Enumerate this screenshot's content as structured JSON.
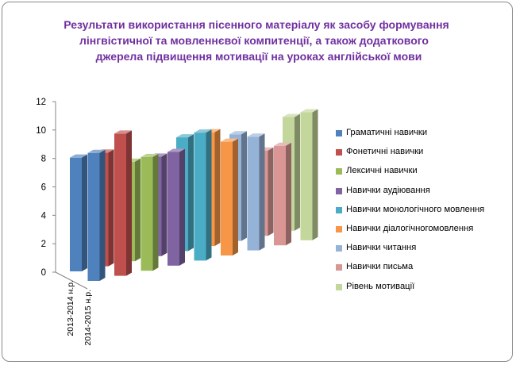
{
  "chart_data": {
    "type": "bar",
    "title_lines": [
      "Результати використання пісенного матеріалу  як засобу формування",
      "лінгвістичної та мовленнєвої компитенції, а також додаткового",
      "джерела підвищення мотивації на уроках англійської мови"
    ],
    "categories": [
      "2013-2014 н.р.",
      "2014-2015 н.р."
    ],
    "ylim": [
      0,
      12
    ],
    "yticks": [
      "0",
      "2",
      "4",
      "6",
      "8",
      "10",
      "12"
    ],
    "grid": false,
    "legend_position": "right",
    "series": [
      {
        "name": "Граматичні навички",
        "color": "#4f81bd",
        "values": [
          8,
          9
        ]
      },
      {
        "name": "Фонетичні навички",
        "color": "#c0504d",
        "values": [
          8,
          10
        ]
      },
      {
        "name": "Лексичні навички",
        "color": "#9bbb59",
        "values": [
          7,
          8
        ]
      },
      {
        "name": "Навички аудіювання",
        "color": "#8064a2",
        "values": [
          7,
          8
        ]
      },
      {
        "name": "Навички монологічного мовлення",
        "color": "#4bacc6",
        "values": [
          8,
          9
        ]
      },
      {
        "name": "Навички діалогічногомовлення",
        "color": "#f79646",
        "values": [
          8,
          8
        ]
      },
      {
        "name": "Навички читання",
        "color": "#95b3d7",
        "values": [
          7.5,
          8
        ]
      },
      {
        "name": "Навички письма",
        "color": "#d99694",
        "values": [
          6,
          7
        ]
      },
      {
        "name": "Рівень мотивації",
        "color": "#c3d69b",
        "values": [
          8,
          9
        ]
      }
    ]
  }
}
